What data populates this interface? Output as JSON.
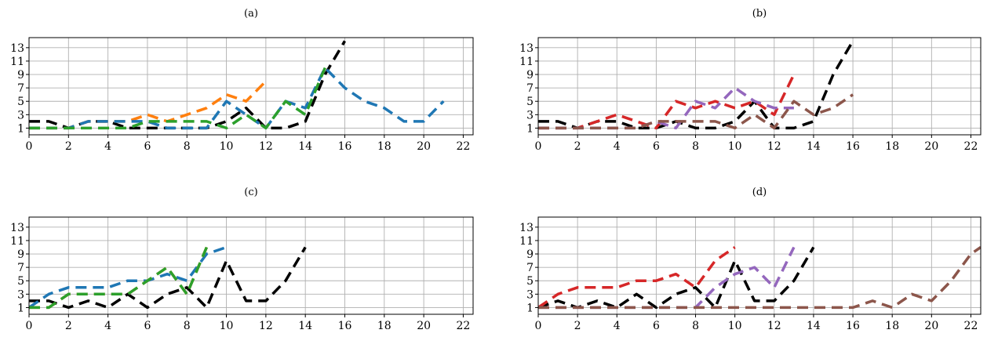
{
  "chart_data": [
    {
      "type": "line",
      "title": "(a)",
      "xlim": [
        0,
        22.5
      ],
      "ylim": [
        0,
        14.5
      ],
      "xticks": [
        0,
        2,
        4,
        6,
        8,
        10,
        12,
        14,
        16,
        18,
        20,
        22
      ],
      "yticks": [
        1,
        3,
        5,
        7,
        9,
        11,
        13
      ],
      "grid": true,
      "series": [
        {
          "color": "#000000",
          "x": [
            0,
            1,
            2,
            3,
            4,
            5,
            6,
            7,
            8,
            9,
            10,
            11,
            12,
            13,
            14,
            15,
            16
          ],
          "y": [
            2,
            2,
            1,
            2,
            2,
            1,
            1,
            1,
            1,
            1,
            2,
            4,
            1,
            1,
            2,
            9,
            14
          ]
        },
        {
          "color": "#ff7f0e",
          "x": [
            0,
            1,
            2,
            3,
            4,
            5,
            6,
            7,
            8,
            9,
            10,
            11,
            12
          ],
          "y": [
            1,
            1,
            1,
            2,
            2,
            2,
            3,
            2,
            3,
            4,
            6,
            5,
            8
          ]
        },
        {
          "color": "#1f77b4",
          "x": [
            0,
            1,
            2,
            3,
            4,
            5,
            6,
            7,
            8,
            9,
            10,
            11,
            12,
            13,
            14,
            15,
            16,
            17,
            18,
            19,
            20,
            21
          ],
          "y": [
            1,
            1,
            1,
            2,
            2,
            2,
            2,
            1,
            1,
            1,
            5,
            3,
            1,
            5,
            4,
            10,
            7,
            5,
            4,
            2,
            2,
            5
          ]
        },
        {
          "color": "#2ca02c",
          "x": [
            0,
            1,
            2,
            3,
            4,
            5,
            6,
            7,
            8,
            9,
            10,
            11,
            12,
            13,
            14,
            15
          ],
          "y": [
            1,
            1,
            1,
            1,
            1,
            1,
            2,
            2,
            2,
            2,
            1,
            3,
            1,
            5,
            3,
            10
          ]
        }
      ]
    },
    {
      "type": "line",
      "title": "(b)",
      "xlim": [
        0,
        22.5
      ],
      "ylim": [
        0,
        14.5
      ],
      "xticks": [
        0,
        2,
        4,
        6,
        8,
        10,
        12,
        14,
        16,
        18,
        20,
        22
      ],
      "yticks": [
        1,
        3,
        5,
        7,
        9,
        11,
        13
      ],
      "grid": true,
      "series": [
        {
          "color": "#000000",
          "x": [
            0,
            1,
            2,
            3,
            4,
            5,
            6,
            7,
            8,
            9,
            10,
            11,
            12,
            13,
            14,
            15,
            16
          ],
          "y": [
            2,
            2,
            1,
            2,
            2,
            1,
            1,
            2,
            1,
            1,
            2,
            5,
            1,
            1,
            2,
            9,
            14
          ]
        },
        {
          "color": "#d62728",
          "x": [
            0,
            1,
            2,
            3,
            4,
            5,
            6,
            7,
            8,
            9,
            10,
            11,
            12,
            13
          ],
          "y": [
            1,
            1,
            1,
            2,
            3,
            2,
            1,
            5,
            4,
            5,
            4,
            5,
            3,
            9
          ]
        },
        {
          "color": "#9467bd",
          "x": [
            0,
            1,
            2,
            3,
            4,
            5,
            6,
            7,
            8,
            9,
            10,
            11,
            12,
            13
          ],
          "y": [
            1,
            1,
            1,
            1,
            1,
            1,
            2,
            1,
            5,
            4,
            7,
            5,
            4,
            4
          ]
        },
        {
          "color": "#8c564b",
          "x": [
            0,
            1,
            2,
            3,
            4,
            5,
            6,
            7,
            8,
            9,
            10,
            11,
            12,
            13,
            14,
            15,
            16
          ],
          "y": [
            1,
            1,
            1,
            1,
            1,
            1,
            2,
            2,
            2,
            2,
            1,
            3,
            1,
            5,
            3,
            4,
            6
          ]
        }
      ]
    },
    {
      "type": "line",
      "title": "(c)",
      "xlim": [
        0,
        22.5
      ],
      "ylim": [
        0,
        14.5
      ],
      "xticks": [
        0,
        2,
        4,
        6,
        8,
        10,
        12,
        14,
        16,
        18,
        20,
        22
      ],
      "yticks": [
        1,
        3,
        5,
        7,
        9,
        11,
        13
      ],
      "grid": true,
      "series": [
        {
          "color": "#000000",
          "x": [
            0,
            1,
            2,
            3,
            4,
            5,
            6,
            7,
            8,
            9,
            10,
            11,
            12,
            13,
            14
          ],
          "y": [
            2,
            2,
            1,
            2,
            1,
            3,
            1,
            3,
            4,
            1,
            8,
            2,
            2,
            5,
            10
          ]
        },
        {
          "color": "#1f77b4",
          "x": [
            0,
            1,
            2,
            3,
            4,
            5,
            6,
            7,
            8,
            9,
            10
          ],
          "y": [
            1,
            3,
            4,
            4,
            4,
            5,
            5,
            6,
            5,
            9,
            10
          ]
        },
        {
          "color": "#ff7f0e",
          "x": [
            0,
            1,
            2,
            3,
            4,
            5,
            6,
            7,
            8,
            9
          ],
          "y": [
            1,
            1,
            3,
            3,
            3,
            3,
            5,
            7,
            3,
            10
          ]
        },
        {
          "color": "#2ca02c",
          "x": [
            0,
            1,
            2,
            3,
            4,
            5,
            6,
            7,
            8,
            9
          ],
          "y": [
            1,
            1,
            3,
            3,
            3,
            3,
            5,
            7,
            3,
            10
          ]
        }
      ]
    },
    {
      "type": "line",
      "title": "(d)",
      "xlim": [
        0,
        22.5
      ],
      "ylim": [
        0,
        14.5
      ],
      "xticks": [
        0,
        2,
        4,
        6,
        8,
        10,
        12,
        14,
        16,
        18,
        20,
        22
      ],
      "yticks": [
        1,
        3,
        5,
        7,
        9,
        11,
        13
      ],
      "grid": true,
      "series": [
        {
          "color": "#000000",
          "x": [
            0,
            1,
            2,
            3,
            4,
            5,
            6,
            7,
            8,
            9,
            10,
            11,
            12,
            13,
            14
          ],
          "y": [
            1,
            2,
            1,
            2,
            1,
            3,
            1,
            3,
            4,
            1,
            8,
            2,
            2,
            5,
            10
          ]
        },
        {
          "color": "#d62728",
          "x": [
            0,
            1,
            2,
            3,
            4,
            5,
            6,
            7,
            8,
            9,
            10
          ],
          "y": [
            1,
            3,
            4,
            4,
            4,
            5,
            5,
            6,
            4,
            8,
            10
          ]
        },
        {
          "color": "#9467bd",
          "x": [
            0,
            1,
            2,
            3,
            4,
            5,
            6,
            7,
            8,
            9,
            10,
            11,
            12,
            13
          ],
          "y": [
            1,
            1,
            1,
            1,
            1,
            1,
            1,
            1,
            1,
            4,
            6,
            7,
            4,
            10
          ]
        },
        {
          "color": "#8c564b",
          "x": [
            0,
            1,
            2,
            3,
            4,
            5,
            6,
            7,
            8,
            9,
            10,
            11,
            12,
            13,
            14,
            15,
            16,
            17,
            18,
            19,
            20,
            21,
            22,
            22.5
          ],
          "y": [
            1,
            1,
            1,
            1,
            1,
            1,
            1,
            1,
            1,
            1,
            1,
            1,
            1,
            1,
            1,
            1,
            1,
            2,
            1,
            3,
            2,
            5,
            9,
            10
          ]
        }
      ]
    }
  ]
}
